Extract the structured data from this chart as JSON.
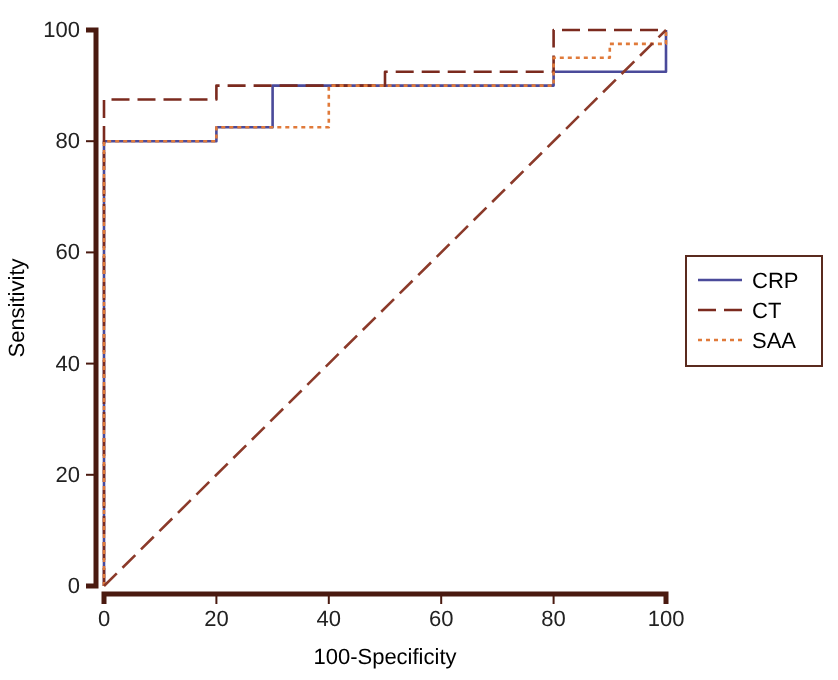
{
  "chart_data": {
    "type": "line",
    "xlabel": "100-Specificity",
    "ylabel": "Sensitivity",
    "xlim": [
      0,
      100
    ],
    "ylim": [
      0,
      100
    ],
    "xticks": [
      0,
      20,
      40,
      60,
      80,
      100
    ],
    "yticks": [
      0,
      20,
      40,
      60,
      80,
      100
    ],
    "grid": false,
    "legend": "right",
    "marker": "none",
    "series": [
      {
        "name": "CRP",
        "color": "#4a4a9a",
        "line_style": "solid",
        "x": [
          0,
          0,
          20,
          20,
          30,
          30,
          80,
          80,
          100,
          100
        ],
        "values": [
          0,
          80,
          80,
          82.5,
          82.5,
          90,
          90,
          92.5,
          92.5,
          100
        ]
      },
      {
        "name": "CT",
        "color": "#7b2a1e",
        "line_style": "dashed",
        "x": [
          0,
          0,
          20,
          20,
          50,
          50,
          80,
          80,
          100
        ],
        "values": [
          0,
          87.5,
          87.5,
          90,
          90,
          92.5,
          92.5,
          100,
          100
        ]
      },
      {
        "name": "SAA",
        "color": "#e07a3a",
        "line_style": "dotted",
        "x": [
          0,
          0,
          20,
          20,
          40,
          40,
          80,
          80,
          90,
          90,
          100,
          100
        ],
        "values": [
          0,
          80,
          80,
          82.5,
          82.5,
          90,
          90,
          95,
          95,
          97.5,
          97.5,
          100
        ]
      },
      {
        "color": "#8b3a2a",
        "line_style": "dashed",
        "x": [
          0,
          100
        ],
        "values": [
          0,
          100
        ]
      }
    ]
  }
}
